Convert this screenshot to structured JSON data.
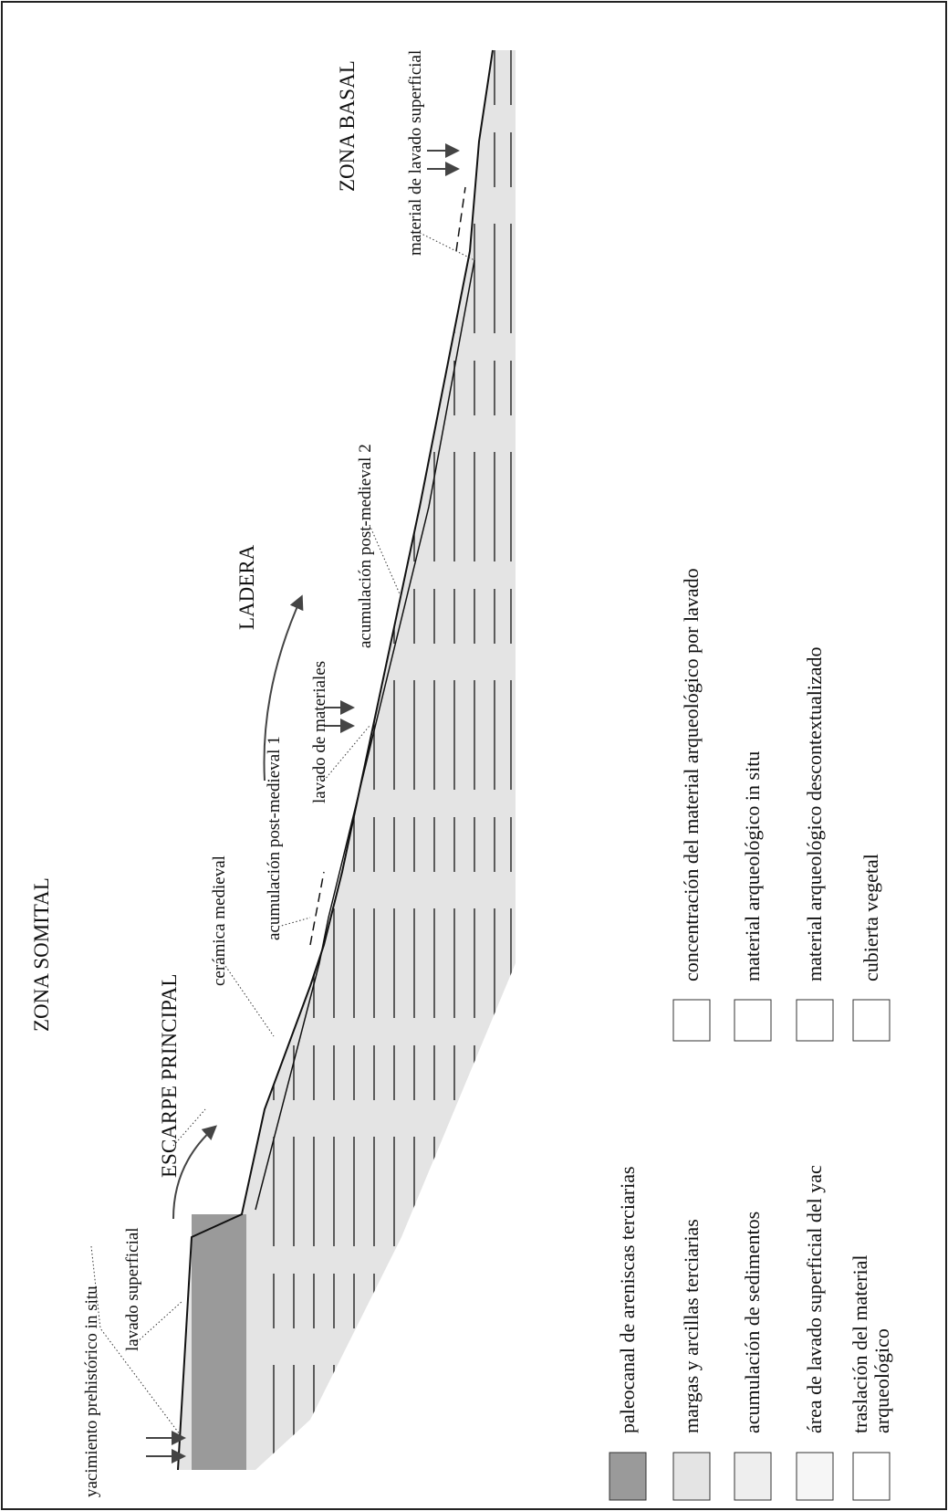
{
  "labels": {
    "zona_somital": "ZONA SOMITAL",
    "yacimiento": "yacimiento prehistórico in situ",
    "lavado_superficial": "lavado superficial",
    "escarpe": "ESCARPE PRINCIPAL",
    "ceramica": "cerámica medieval",
    "acumulacion_1": "acumulación post-medieval 1",
    "lavado_materiales": "lavado de materiales",
    "ladera": "LADERA",
    "acumulacion_2": "acumulación post-medieval 2",
    "zona_basal": "ZONA BASAL",
    "material_lavado": "material de lavado superficial"
  },
  "legend": [
    {
      "label": "paleocanal de areniscas terciarias"
    },
    {
      "label": "margas y arcillas terciarias"
    },
    {
      "label": "acumulación de sedimentos"
    },
    {
      "label": "área de lavado superficial del yac"
    },
    {
      "label": "traslación del material",
      "label2": "arqueológico"
    },
    {
      "label": "concentración del material arqueológico por lavado"
    },
    {
      "label": "material arqueológico in situ"
    },
    {
      "label": "material arqueológico descontextualizado"
    },
    {
      "label": "cubierta vegetal"
    }
  ]
}
